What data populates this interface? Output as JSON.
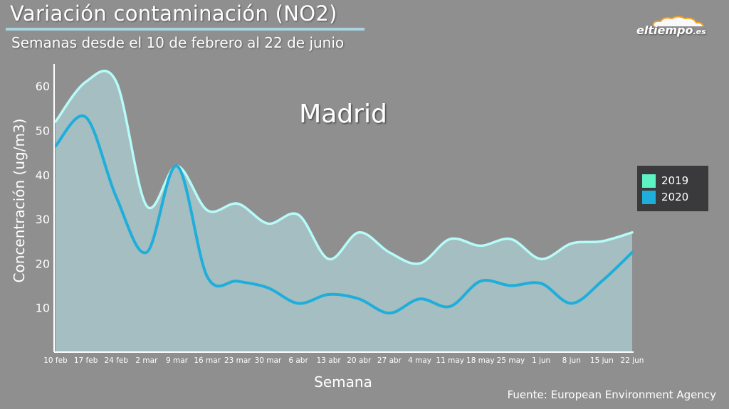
{
  "header": {
    "title": "Variación contaminación (NO2)",
    "subtitle": "Semanas desde el 10 de febrero al 22 de junio"
  },
  "logo": {
    "name": "eltiempo",
    "tld": ".es",
    "icon": "cloud-icon"
  },
  "footer": {
    "source": "Fuente: European Environment Agency"
  },
  "colors": {
    "background": "#8f8f90",
    "series_2019": "#b6fbf8",
    "series_2020": "#1faedb",
    "fill": "#a6c3c6",
    "legend_2019": "#5ef2c3",
    "legend_2020": "#1faedb",
    "legend_bg": "#3a3a3c"
  },
  "chart_data": {
    "type": "line",
    "title": "Madrid",
    "xlabel": "Semana",
    "ylabel": "Concentración (ug/m3)",
    "ylim": [
      0,
      65
    ],
    "yticks": [
      10,
      20,
      30,
      40,
      50,
      60
    ],
    "grid": false,
    "legend_position": "right",
    "categories": [
      "10 feb",
      "17 feb",
      "24 feb",
      "2 mar",
      "9 mar",
      "16 mar",
      "23 mar",
      "30 mar",
      "6 abr",
      "13 abr",
      "20 abr",
      "27 abr",
      "4 may",
      "11 may",
      "18 may",
      "25 may",
      "1 jun",
      "8 jun",
      "15 jun",
      "22 jun"
    ],
    "series": [
      {
        "name": "2019",
        "values": [
          52,
          61,
          61,
          33,
          42,
          32,
          33.5,
          29,
          31,
          21,
          27,
          22.5,
          20,
          25.5,
          24,
          25.5,
          21,
          24.5,
          25,
          27
        ]
      },
      {
        "name": "2020",
        "values": [
          46.5,
          53,
          35,
          22.5,
          42,
          17,
          16,
          14.5,
          11,
          13,
          12,
          8.8,
          12,
          10.3,
          16,
          15,
          15.5,
          11,
          16,
          22.5
        ]
      }
    ]
  }
}
